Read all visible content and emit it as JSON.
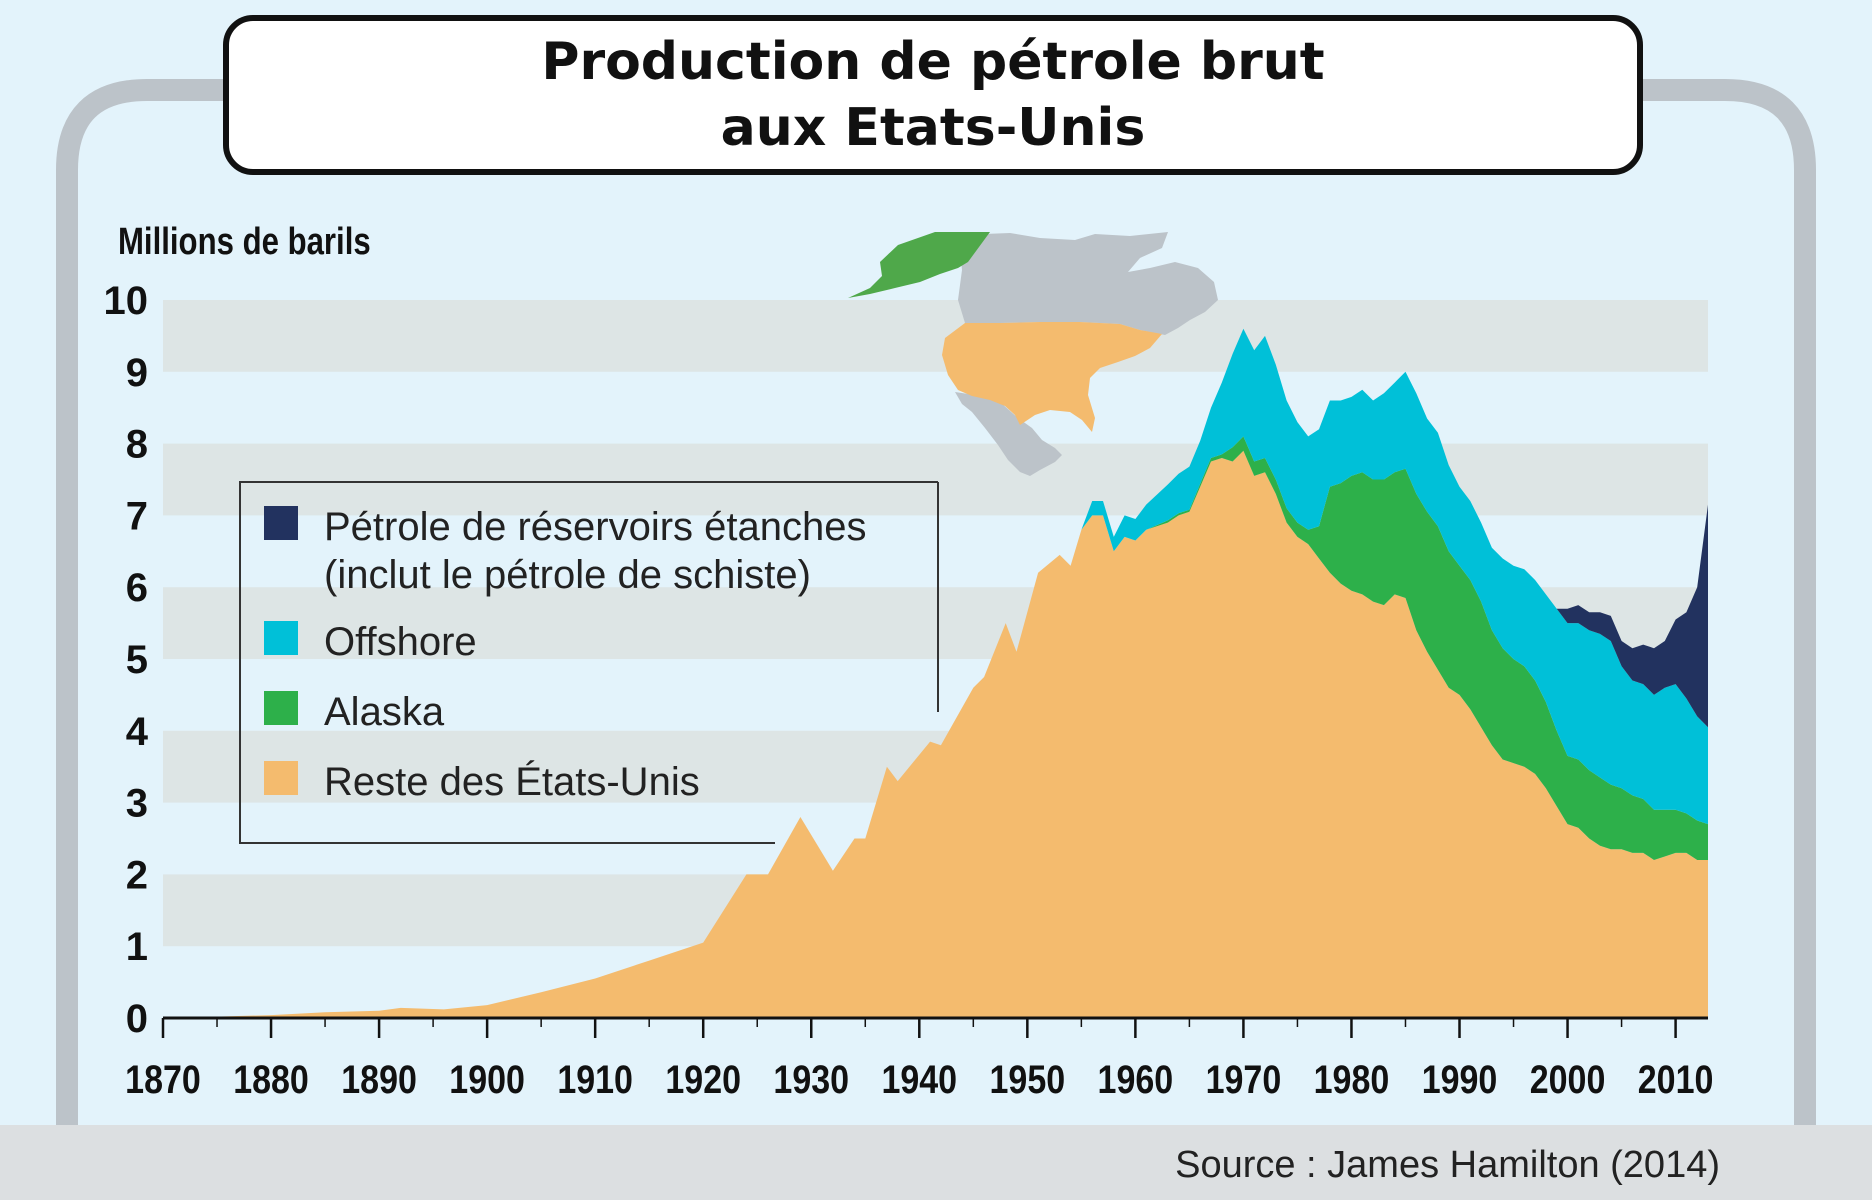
{
  "chart_data": {
    "type": "area",
    "title_lines": [
      "Production de pétrole brut",
      "aux Etats-Unis"
    ],
    "ylabel": "Millions de barils",
    "ylim": [
      0,
      10
    ],
    "xlim": [
      1870,
      2013
    ],
    "y_ticks": [
      "0",
      "1",
      "2",
      "3",
      "4",
      "5",
      "6",
      "7",
      "8",
      "9",
      "10"
    ],
    "x_ticks": [
      "1870",
      "1880",
      "1890",
      "1900",
      "1910",
      "1920",
      "1930",
      "1940",
      "1950",
      "1960",
      "1970",
      "1980",
      "1990",
      "2000",
      "2010"
    ],
    "grid": "horizontal bands",
    "stacked": true,
    "colors": {
      "tight": "#22325f",
      "offshore": "#00c0d8",
      "alaska": "#2db04a",
      "rest": "#f4bb6e",
      "map_other": "#bcc3c9"
    },
    "x": [
      1870,
      1875,
      1880,
      1885,
      1890,
      1892,
      1896,
      1900,
      1905,
      1910,
      1915,
      1920,
      1924,
      1926,
      1929,
      1932,
      1934,
      1935,
      1937,
      1938,
      1941,
      1942,
      1945,
      1946,
      1948,
      1949,
      1951,
      1953,
      1954,
      1955,
      1956,
      1957,
      1958,
      1959,
      1960,
      1961,
      1963,
      1964,
      1965,
      1966,
      1967,
      1968,
      1969,
      1970,
      1971,
      1972,
      1973,
      1974,
      1975,
      1976,
      1977,
      1978,
      1979,
      1980,
      1981,
      1982,
      1983,
      1984,
      1985,
      1986,
      1987,
      1988,
      1989,
      1990,
      1991,
      1992,
      1993,
      1994,
      1995,
      1996,
      1997,
      1998,
      1999,
      2000,
      2001,
      2002,
      2003,
      2004,
      2005,
      2006,
      2007,
      2008,
      2009,
      2010,
      2011,
      2012,
      2013
    ],
    "series": [
      {
        "name": "Reste des États-Unis",
        "color_key": "rest",
        "values": [
          0.01,
          0.02,
          0.04,
          0.08,
          0.1,
          0.14,
          0.12,
          0.18,
          0.36,
          0.55,
          0.8,
          1.05,
          2.0,
          2.0,
          2.8,
          2.05,
          2.5,
          2.5,
          3.5,
          3.3,
          3.85,
          3.8,
          4.6,
          4.75,
          5.5,
          5.1,
          6.2,
          6.45,
          6.3,
          6.8,
          7.0,
          7.0,
          6.5,
          6.7,
          6.65,
          6.8,
          6.9,
          7.0,
          7.05,
          7.4,
          7.75,
          7.8,
          7.75,
          7.9,
          7.55,
          7.6,
          7.3,
          6.9,
          6.7,
          6.6,
          6.4,
          6.2,
          6.05,
          5.95,
          5.9,
          5.8,
          5.75,
          5.9,
          5.85,
          5.4,
          5.1,
          4.85,
          4.6,
          4.5,
          4.3,
          4.05,
          3.8,
          3.6,
          3.55,
          3.5,
          3.4,
          3.2,
          2.95,
          2.7,
          2.65,
          2.5,
          2.4,
          2.35,
          2.35,
          2.3,
          2.3,
          2.2,
          2.25,
          2.3,
          2.3,
          2.2,
          2.2
        ]
      },
      {
        "name": "Alaska",
        "color_key": "alaska",
        "values": [
          0,
          0,
          0,
          0,
          0,
          0,
          0,
          0,
          0,
          0,
          0,
          0,
          0,
          0,
          0,
          0,
          0,
          0,
          0,
          0,
          0,
          0,
          0,
          0,
          0,
          0,
          0,
          0,
          0,
          0,
          0,
          0,
          0,
          0,
          0,
          0,
          0.03,
          0.03,
          0.03,
          0.04,
          0.05,
          0.05,
          0.2,
          0.2,
          0.2,
          0.2,
          0.2,
          0.2,
          0.2,
          0.2,
          0.45,
          1.2,
          1.4,
          1.6,
          1.7,
          1.7,
          1.75,
          1.7,
          1.8,
          1.9,
          1.95,
          2.0,
          1.9,
          1.8,
          1.8,
          1.75,
          1.6,
          1.55,
          1.45,
          1.4,
          1.3,
          1.2,
          1.05,
          0.95,
          0.95,
          0.95,
          0.95,
          0.9,
          0.85,
          0.8,
          0.75,
          0.7,
          0.65,
          0.6,
          0.55,
          0.55,
          0.5
        ]
      },
      {
        "name": "Offshore",
        "color_key": "offshore",
        "values": [
          0,
          0,
          0,
          0,
          0,
          0,
          0,
          0,
          0,
          0,
          0,
          0,
          0,
          0,
          0,
          0,
          0,
          0,
          0,
          0,
          0,
          0,
          0,
          0,
          0,
          0,
          0,
          0,
          0,
          0,
          0.2,
          0.2,
          0.2,
          0.3,
          0.3,
          0.35,
          0.5,
          0.55,
          0.6,
          0.6,
          0.7,
          1.0,
          1.3,
          1.5,
          1.55,
          1.7,
          1.6,
          1.5,
          1.4,
          1.3,
          1.35,
          1.2,
          1.15,
          1.1,
          1.15,
          1.1,
          1.2,
          1.25,
          1.35,
          1.4,
          1.3,
          1.3,
          1.2,
          1.1,
          1.1,
          1.1,
          1.15,
          1.25,
          1.3,
          1.35,
          1.4,
          1.5,
          1.7,
          1.85,
          1.9,
          1.95,
          2.0,
          2.0,
          1.7,
          1.6,
          1.6,
          1.6,
          1.7,
          1.75,
          1.6,
          1.45,
          1.35
        ]
      },
      {
        "name": "Pétrole de réservoirs étanches (inclut le pétrole de schiste)",
        "color_key": "tight",
        "values": [
          0,
          0,
          0,
          0,
          0,
          0,
          0,
          0,
          0,
          0,
          0,
          0,
          0,
          0,
          0,
          0,
          0,
          0,
          0,
          0,
          0,
          0,
          0,
          0,
          0,
          0,
          0,
          0,
          0,
          0,
          0,
          0,
          0,
          0,
          0,
          0,
          0,
          0,
          0,
          0,
          0,
          0,
          0,
          0,
          0,
          0,
          0,
          0,
          0,
          0,
          0,
          0,
          0,
          0,
          0,
          0,
          0,
          0,
          0,
          0,
          0,
          0,
          0,
          0,
          0,
          0,
          0,
          0,
          0,
          0,
          0,
          0,
          0,
          0.2,
          0.25,
          0.25,
          0.3,
          0.35,
          0.35,
          0.45,
          0.55,
          0.65,
          0.65,
          0.9,
          1.2,
          1.8,
          3.1
        ]
      }
    ],
    "legend": {
      "placement": "left",
      "entries": [
        {
          "lines": [
            "Pétrole de réservoirs étanches",
            "(inclut le pétrole de schiste)"
          ],
          "color_key": "tight"
        },
        {
          "lines": [
            "Offshore"
          ],
          "color_key": "offshore"
        },
        {
          "lines": [
            "Alaska"
          ],
          "color_key": "alaska"
        },
        {
          "lines": [
            "Reste des États-Unis"
          ],
          "color_key": "rest"
        }
      ]
    },
    "inset": "map of North America — lower 48 states and Alaska highlighted",
    "source": "Source : James Hamilton (2014)"
  }
}
